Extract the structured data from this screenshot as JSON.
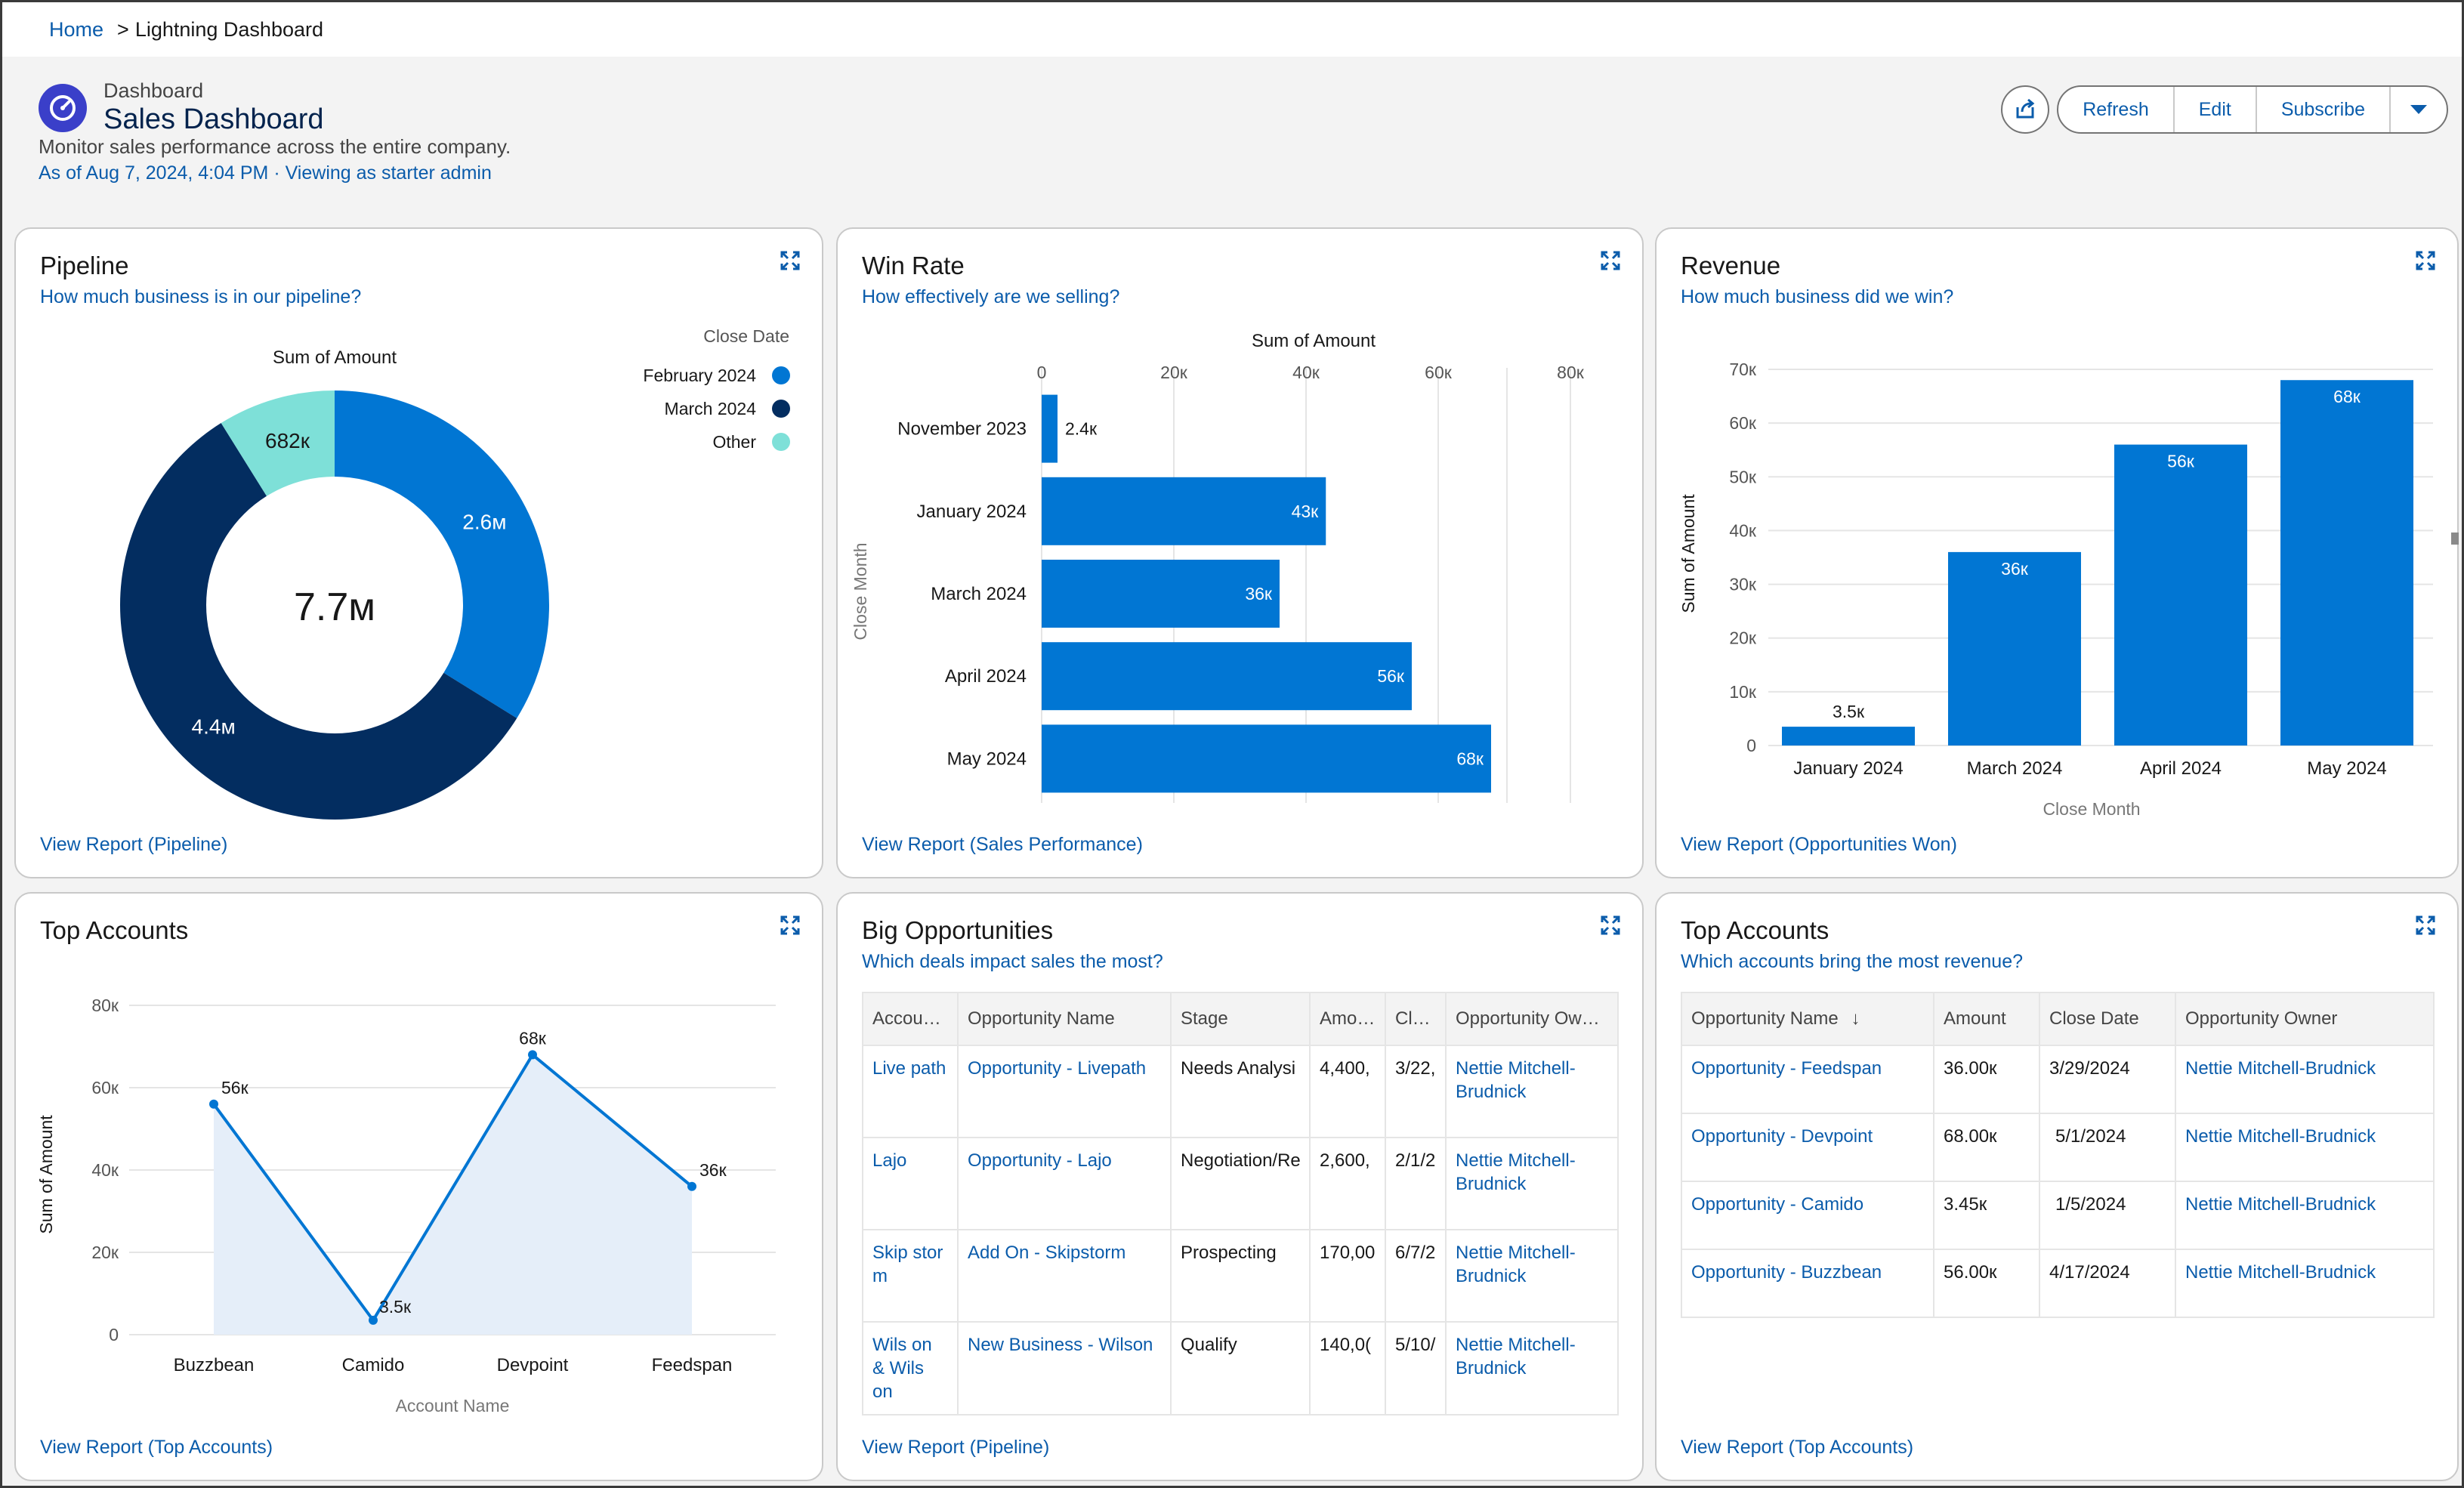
{
  "breadcrumb": {
    "home": "Home",
    "current": "Lightning Dashboard"
  },
  "header": {
    "type_label": "Dashboard",
    "title": "Sales Dashboard",
    "description": "Monitor sales performance across the entire company.",
    "meta": "As of Aug 7, 2024, 4:04 PM · Viewing as starter admin",
    "actions": {
      "refresh": "Refresh",
      "edit": "Edit",
      "subscribe": "Subscribe"
    },
    "icons": {
      "dashboard": "gauge-icon",
      "share": "share-icon",
      "menu": "chevron-down-icon"
    },
    "accent": "#0b5cab"
  },
  "cards": {
    "pipeline": {
      "title": "Pipeline",
      "subtitle": "How much business is in our pipeline?",
      "footer": "View Report (Pipeline)"
    },
    "winrate": {
      "title": "Win Rate",
      "subtitle": "How effectively are we selling?",
      "footer": "View Report (Sales Performance)"
    },
    "revenue": {
      "title": "Revenue",
      "subtitle": "How much business did we win?",
      "footer": "View Report (Opportunities Won)"
    },
    "top_accounts_line": {
      "title": "Top Accounts",
      "footer": "View Report (Top Accounts)"
    },
    "big_opps": {
      "title": "Big Opportunities",
      "subtitle": "Which deals impact sales the most?",
      "footer": "View Report (Pipeline)"
    },
    "top_accounts_table": {
      "title": "Top Accounts",
      "subtitle": "Which accounts bring the most revenue?",
      "footer": "View Report (Top Accounts)"
    }
  },
  "chart_data": [
    {
      "id": "pipeline",
      "type": "pie",
      "title": "Sum of Amount",
      "center_label": "7.7м",
      "legend_title": "Close Date",
      "legend_position": "top-right",
      "slices": [
        {
          "name": "February 2024",
          "value": 2.6,
          "label": "2.6м",
          "color": "#0176d3"
        },
        {
          "name": "March 2024",
          "value": 4.4,
          "label": "4.4м",
          "color": "#032d60"
        },
        {
          "name": "Other",
          "value": 0.682,
          "label": "682к",
          "color": "#7ee0d8"
        }
      ]
    },
    {
      "id": "winrate",
      "type": "bar",
      "orientation": "horizontal",
      "xlabel": "Sum of Amount",
      "ylabel": "Close Month",
      "xlim": [
        0,
        80000
      ],
      "xticks": [
        {
          "value": 0,
          "label": "0"
        },
        {
          "value": 20000,
          "label": "20к"
        },
        {
          "value": 40000,
          "label": "40к"
        },
        {
          "value": 60000,
          "label": "60к"
        },
        {
          "value": 80000,
          "label": "80к"
        }
      ],
      "categories": [
        "November 2023",
        "January 2024",
        "March 2024",
        "April 2024",
        "May 2024"
      ],
      "values": [
        2400,
        43000,
        36000,
        56000,
        68000
      ],
      "labels": [
        "2.4к",
        "43к",
        "36к",
        "56к",
        "68к"
      ],
      "color": "#0176d3"
    },
    {
      "id": "revenue",
      "type": "bar",
      "xlabel": "Close Month",
      "ylabel": "Sum of Amount",
      "ylim": [
        0,
        70000
      ],
      "yticks": [
        {
          "value": 0,
          "label": "0"
        },
        {
          "value": 10000,
          "label": "10к"
        },
        {
          "value": 20000,
          "label": "20к"
        },
        {
          "value": 30000,
          "label": "30к"
        },
        {
          "value": 40000,
          "label": "40к"
        },
        {
          "value": 50000,
          "label": "50к"
        },
        {
          "value": 60000,
          "label": "60к"
        },
        {
          "value": 70000,
          "label": "70к"
        }
      ],
      "categories": [
        "January 2024",
        "March 2024",
        "April 2024",
        "May 2024"
      ],
      "values": [
        3500,
        36000,
        56000,
        68000
      ],
      "labels": [
        "3.5к",
        "36к",
        "56к",
        "68к"
      ],
      "color": "#0176d3"
    },
    {
      "id": "top_accounts_line",
      "type": "area",
      "xlabel": "Account Name",
      "ylabel": "Sum of Amount",
      "ylim": [
        0,
        80000
      ],
      "yticks": [
        {
          "value": 0,
          "label": "0"
        },
        {
          "value": 20000,
          "label": "20к"
        },
        {
          "value": 40000,
          "label": "40к"
        },
        {
          "value": 60000,
          "label": "60к"
        },
        {
          "value": 80000,
          "label": "80к"
        }
      ],
      "categories": [
        "Buzzbean",
        "Camido",
        "Devpoint",
        "Feedspan"
      ],
      "values": [
        56000,
        3500,
        68000,
        36000
      ],
      "labels": [
        "56к",
        "3.5к",
        "68к",
        "36к"
      ],
      "color": "#0176d3",
      "fill_color": "#e5eef9"
    }
  ],
  "big_opps_table": {
    "headers": [
      "Accou…",
      "Opportunity Name",
      "Stage",
      "Amo…",
      "Cl…",
      "Opportunity Ow…"
    ],
    "rows": [
      [
        "Live path",
        "Opportunity - Livepath",
        "Needs Analysi",
        "4,400,",
        "3/22,",
        "Nettie Mitchell-Brudnick"
      ],
      [
        "Lajo",
        "Opportunity - Lajo",
        "Negotiation/Re",
        "2,600,",
        "2/1/2",
        "Nettie Mitchell-Brudnick"
      ],
      [
        "Skip stor m",
        "Add On - Skipstorm",
        "Prospecting",
        "170,00",
        "6/7/2",
        "Nettie Mitchell-Brudnick"
      ],
      [
        "Wils on & Wils on",
        "New Business - Wilson",
        "Qualify",
        "140,0(",
        "5/10/",
        "Nettie Mitchell-Brudnick"
      ]
    ]
  },
  "top_accounts_table": {
    "headers": [
      "Opportunity Name",
      "Amount",
      "Close Date",
      "Opportunity Owner"
    ],
    "sort_icon": "arrow-down-icon",
    "rows": [
      [
        "Opportunity - Feedspan",
        "36.00к",
        "3/29/2024",
        "Nettie Mitchell-Brudnick"
      ],
      [
        "Opportunity - Devpoint",
        "68.00к",
        "5/1/2024",
        "Nettie Mitchell-Brudnick"
      ],
      [
        "Opportunity - Camido",
        "3.45к",
        "1/5/2024",
        "Nettie Mitchell-Brudnick"
      ],
      [
        "Opportunity - Buzzbean",
        "56.00к",
        "4/17/2024",
        "Nettie Mitchell-Brudnick"
      ]
    ]
  }
}
